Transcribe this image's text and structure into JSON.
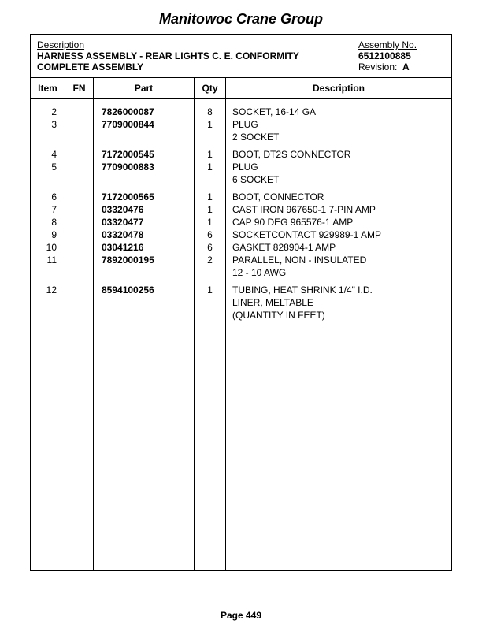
{
  "page_title": "Manitowoc Crane Group",
  "header": {
    "desc_label": "Description",
    "desc_line1": "HARNESS ASSEMBLY - REAR LIGHTS C. E. CONFORMITY",
    "desc_line2": "COMPLETE ASSEMBLY",
    "asm_label": "Assembly No.",
    "asm_no": "6512100885",
    "rev_label": "Revision:",
    "rev_value": "A"
  },
  "columns": {
    "item": "Item",
    "fn": "FN",
    "part": "Part",
    "qty": "Qty",
    "desc": "Description"
  },
  "rows": [
    {
      "item": "2",
      "fn": "",
      "part": "7826000087",
      "qty": "8",
      "desc": [
        "SOCKET, 16-14 GA"
      ],
      "gap_before": false
    },
    {
      "item": "3",
      "fn": "",
      "part": "7709000844",
      "qty": "1",
      "desc": [
        "PLUG",
        "2 SOCKET"
      ],
      "gap_before": false
    },
    {
      "item": "4",
      "fn": "",
      "part": "7172000545",
      "qty": "1",
      "desc": [
        "BOOT, DT2S CONNECTOR"
      ],
      "gap_before": true
    },
    {
      "item": "5",
      "fn": "",
      "part": "7709000883",
      "qty": "1",
      "desc": [
        "PLUG",
        "6 SOCKET"
      ],
      "gap_before": false
    },
    {
      "item": "6",
      "fn": "",
      "part": "7172000565",
      "qty": "1",
      "desc": [
        "BOOT, CONNECTOR"
      ],
      "gap_before": true
    },
    {
      "item": "7",
      "fn": "",
      "part": "03320476",
      "qty": "1",
      "desc": [
        "CAST IRON 967650-1 7-PIN AMP"
      ],
      "gap_before": false
    },
    {
      "item": "8",
      "fn": "",
      "part": "03320477",
      "qty": "1",
      "desc": [
        "CAP 90 DEG 965576-1 AMP"
      ],
      "gap_before": false
    },
    {
      "item": "9",
      "fn": "",
      "part": "03320478",
      "qty": "6",
      "desc": [
        "SOCKETCONTACT 929989-1 AMP"
      ],
      "gap_before": false
    },
    {
      "item": "10",
      "fn": "",
      "part": "03041216",
      "qty": "6",
      "desc": [
        "GASKET 828904-1 AMP"
      ],
      "gap_before": false
    },
    {
      "item": "11",
      "fn": "",
      "part": "7892000195",
      "qty": "2",
      "desc": [
        "PARALLEL, NON - INSULATED",
        "12 - 10 AWG"
      ],
      "gap_before": false
    },
    {
      "item": "12",
      "fn": "",
      "part": "8594100256",
      "qty": "1",
      "desc": [
        "TUBING, HEAT SHRINK 1/4\" I.D.",
        "LINER, MELTABLE",
        "(QUANTITY IN FEET)"
      ],
      "gap_before": true
    }
  ],
  "footer": "Page 449"
}
